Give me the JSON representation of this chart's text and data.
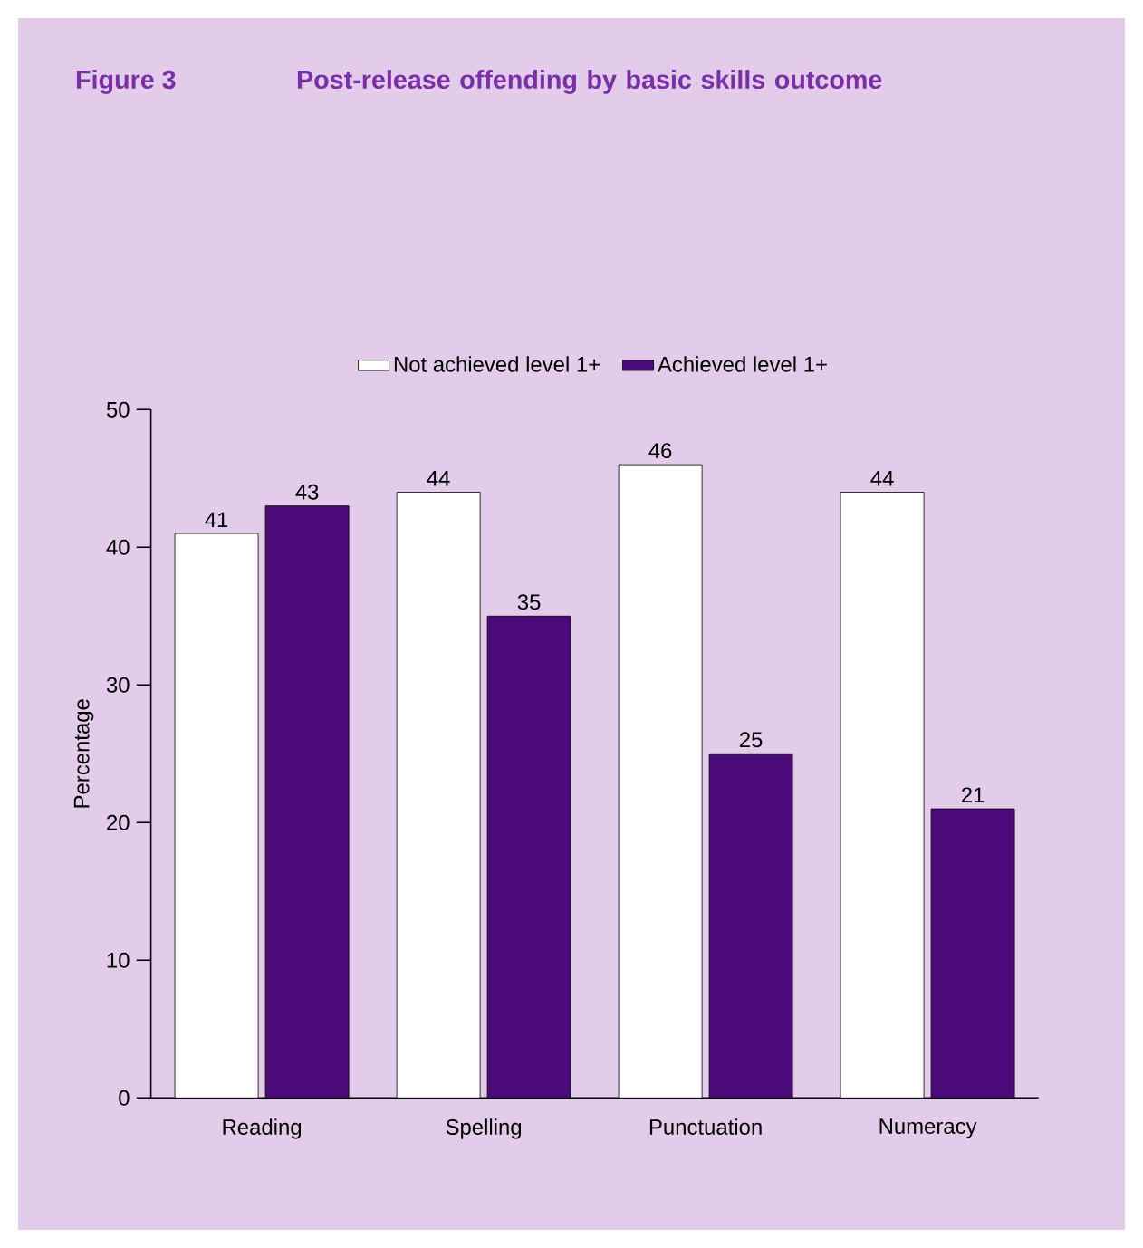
{
  "chart_data": {
    "type": "bar",
    "title": "Figure 3",
    "subtitle": "Post-release offending by basic skills outcome",
    "ylabel": "Percentage",
    "categories": [
      "Reading",
      "Spelling",
      "Punctuation",
      "Numeracy"
    ],
    "series": [
      {
        "name": "Not achieved level 1+",
        "color": "#ffffff",
        "values": [
          41,
          44,
          46,
          44
        ]
      },
      {
        "name": "Achieved level 1+",
        "color": "#4b0a7a",
        "values": [
          43,
          35,
          25,
          21
        ]
      }
    ],
    "ylim": [
      0,
      50
    ],
    "yticks": [
      0,
      10,
      20,
      30,
      40,
      50
    ],
    "grid": false,
    "legend": "top",
    "data_labels": true
  }
}
